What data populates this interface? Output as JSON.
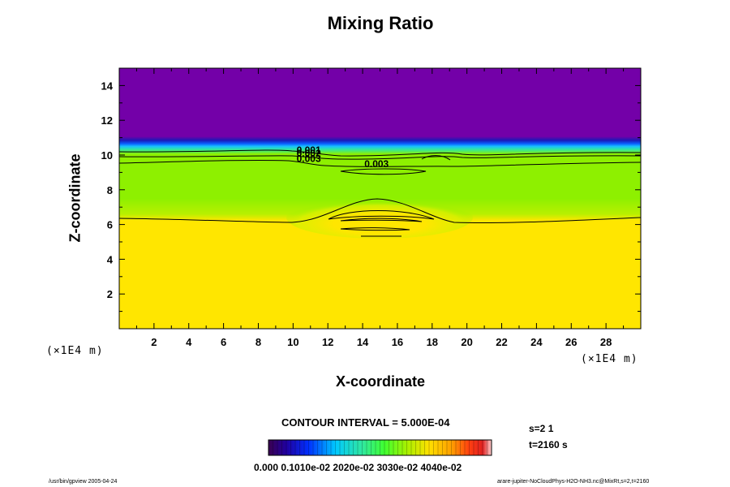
{
  "chart_data": {
    "type": "heatmap",
    "title": "Mixing Ratio",
    "xlabel": "X-coordinate",
    "ylabel": "Z-coordinate",
    "x_unit": "(×1E4 m)",
    "y_unit": "(×1E4 m)",
    "xlim": [
      0,
      30
    ],
    "ylim": [
      0,
      15
    ],
    "x_ticks": [
      2,
      4,
      6,
      8,
      10,
      12,
      14,
      16,
      18,
      20,
      22,
      24,
      26,
      28
    ],
    "y_ticks": [
      2,
      4,
      6,
      8,
      10,
      12,
      14
    ],
    "contour_labels": [
      {
        "text": "0.001",
        "x": 10.9,
        "y": 10.1
      },
      {
        "text": "0.002",
        "x": 10.9,
        "y": 9.9
      },
      {
        "text": "0.003",
        "x": 10.9,
        "y": 9.6
      },
      {
        "text": "0.003",
        "x": 14.8,
        "y": 9.3
      }
    ],
    "regions": [
      {
        "name": "upper",
        "z_from": 10.6,
        "z_to": 15,
        "value": 0.0,
        "color": "#7300a8"
      },
      {
        "name": "middle",
        "z_from": 6.4,
        "z_to": 9.6,
        "value": 0.0033,
        "color": "#8ef000"
      },
      {
        "name": "lower",
        "z_from": 0,
        "z_to": 6.4,
        "value": 0.0045,
        "color": "#ffe600"
      }
    ],
    "colorbar": {
      "min": 0.0,
      "max": 0.005,
      "tick_labels": "0.000 0.1010e-02 2020e-02 3030e-02 4040e-02"
    }
  },
  "contour_interval": "CONTOUR INTERVAL = 5.000E-04",
  "step_info": "s=2 1",
  "time_info": "t=2160 s",
  "footer_left": "/usr/bin/gpview 2005-04-24",
  "footer_right": "arare-jupiter-NoCloudPhys-H2O-NH3.nc@MixRt,s=2,t=2160"
}
